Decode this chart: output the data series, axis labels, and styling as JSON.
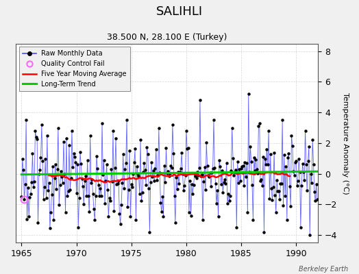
{
  "title": "SALIHLI",
  "subtitle": "38.500 N, 28.100 E (Turkey)",
  "ylabel": "Temperature Anomaly (°C)",
  "credit": "Berkeley Earth",
  "xlim": [
    1964.5,
    1992.0
  ],
  "ylim": [
    -4.5,
    8.5
  ],
  "yticks": [
    -4,
    -2,
    0,
    2,
    4,
    6,
    8
  ],
  "xticks": [
    1965,
    1970,
    1975,
    1980,
    1985,
    1990
  ],
  "bg_color": "#f0f0f0",
  "plot_bg": "#ffffff",
  "line_color": "#4444ff",
  "dot_color": "#000000",
  "ma_color": "#ff0000",
  "trend_color": "#00cc00",
  "qc_color": "#ff66ff",
  "seed": 123
}
